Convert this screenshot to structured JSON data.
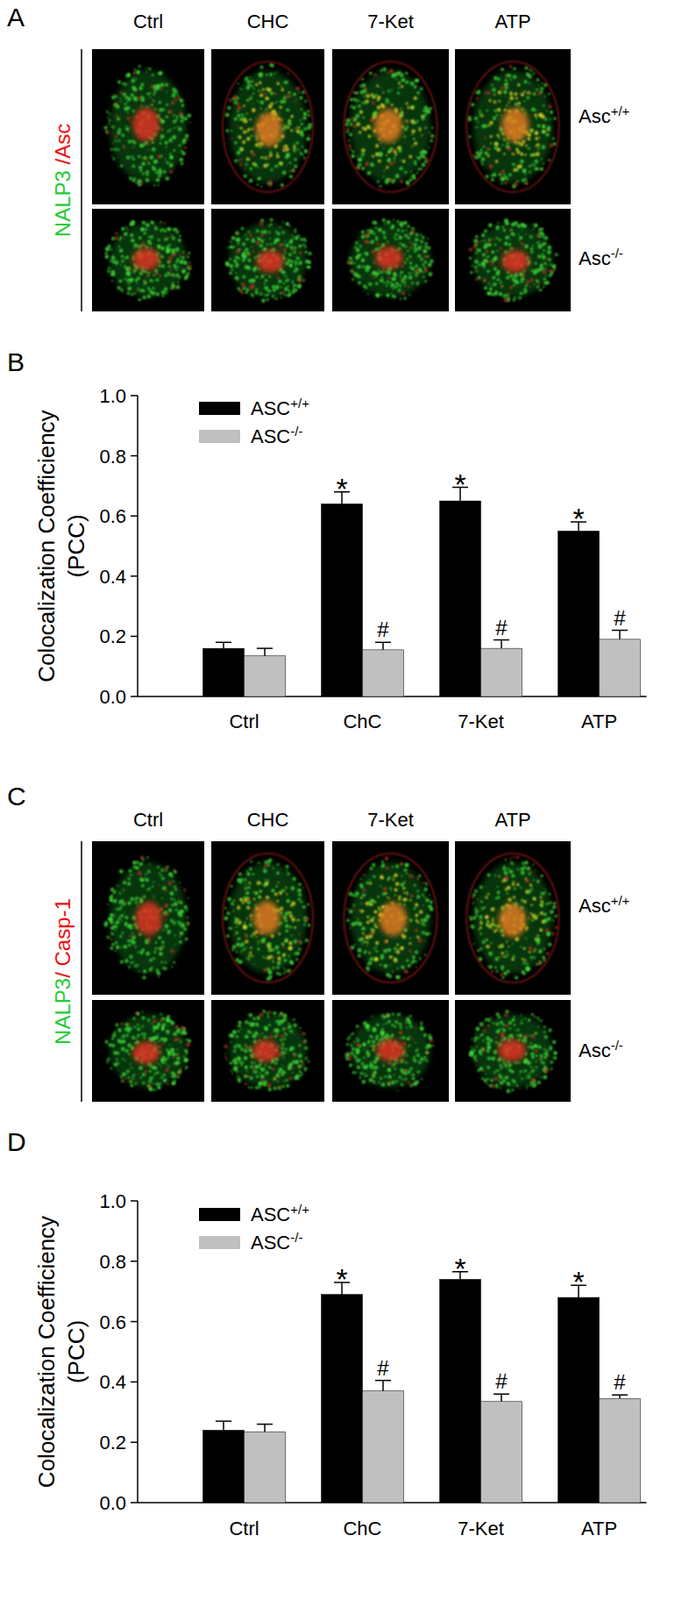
{
  "chart_data": [
    {
      "type": "bar",
      "title": "B",
      "y_label": [
        "Colocalization Coefficiency",
        "(PCC)"
      ],
      "categories": [
        "Ctrl",
        "ChC",
        "7-Ket",
        "ATP"
      ],
      "series": [
        {
          "name": "ASC+/+",
          "color": "#000000",
          "values": [
            0.16,
            0.64,
            0.65,
            0.55
          ],
          "errors": [
            0.02,
            0.04,
            0.045,
            0.03
          ],
          "annotations": [
            null,
            "*",
            "*",
            "*"
          ]
        },
        {
          "name": "ASC-/-",
          "color": "#c0c0c0",
          "values": [
            0.135,
            0.155,
            0.16,
            0.19
          ],
          "errors": [
            0.025,
            0.025,
            0.028,
            0.03
          ],
          "annotations": [
            null,
            "#",
            "#",
            "#"
          ]
        }
      ],
      "ylim": [
        0,
        1.0
      ],
      "yticks": [
        {
          "value": 0,
          "label": "0.0"
        },
        0.2,
        0.4,
        0.6,
        0.8,
        {
          "value": 1.0,
          "label": "1.0"
        }
      ],
      "legend": "upper left"
    },
    {
      "type": "bar",
      "title": "D",
      "y_label": [
        "Colocalization Coefficiency",
        "(PCC)"
      ],
      "categories": [
        "Ctrl",
        "ChC",
        "7-Ket",
        "ATP"
      ],
      "series": [
        {
          "name": "ASC+/+",
          "color": "#000000",
          "values": [
            0.24,
            0.69,
            0.74,
            0.68
          ],
          "errors": [
            0.03,
            0.04,
            0.025,
            0.04
          ],
          "annotations": [
            null,
            "*",
            "*",
            "*"
          ]
        },
        {
          "name": "ASC-/-",
          "color": "#c0c0c0",
          "values": [
            0.235,
            0.37,
            0.335,
            0.345
          ],
          "errors": [
            0.025,
            0.035,
            0.025,
            0.012
          ],
          "annotations": [
            null,
            "#",
            "#",
            "#"
          ]
        }
      ],
      "ylim": [
        0,
        1.0
      ],
      "yticks": [
        {
          "value": 0,
          "label": "0.0"
        },
        0.2,
        0.4,
        0.6,
        0.8,
        {
          "value": 1.0,
          "label": "1.0"
        }
      ],
      "legend": "upper left"
    }
  ],
  "image_panels": [
    {
      "label": "A",
      "columns": [
        "Ctrl",
        "CHC",
        "7-Ket",
        "ATP"
      ],
      "rows": [
        "Asc+/+",
        "Asc-/-"
      ],
      "stain": [
        {
          "text": "NALP3",
          "color": "#22cc33"
        },
        {
          "text": " /Asc",
          "color": "#ee1111"
        }
      ]
    },
    {
      "label": "C",
      "columns": [
        "Ctrl",
        "CHC",
        "7-Ket",
        "ATP"
      ],
      "rows": [
        "Asc+/+",
        "Asc-/-"
      ],
      "stain": [
        {
          "text": "NALP3",
          "color": "#22cc33"
        },
        {
          "text": "/ Casp-1",
          "color": "#ee1111"
        }
      ]
    }
  ]
}
